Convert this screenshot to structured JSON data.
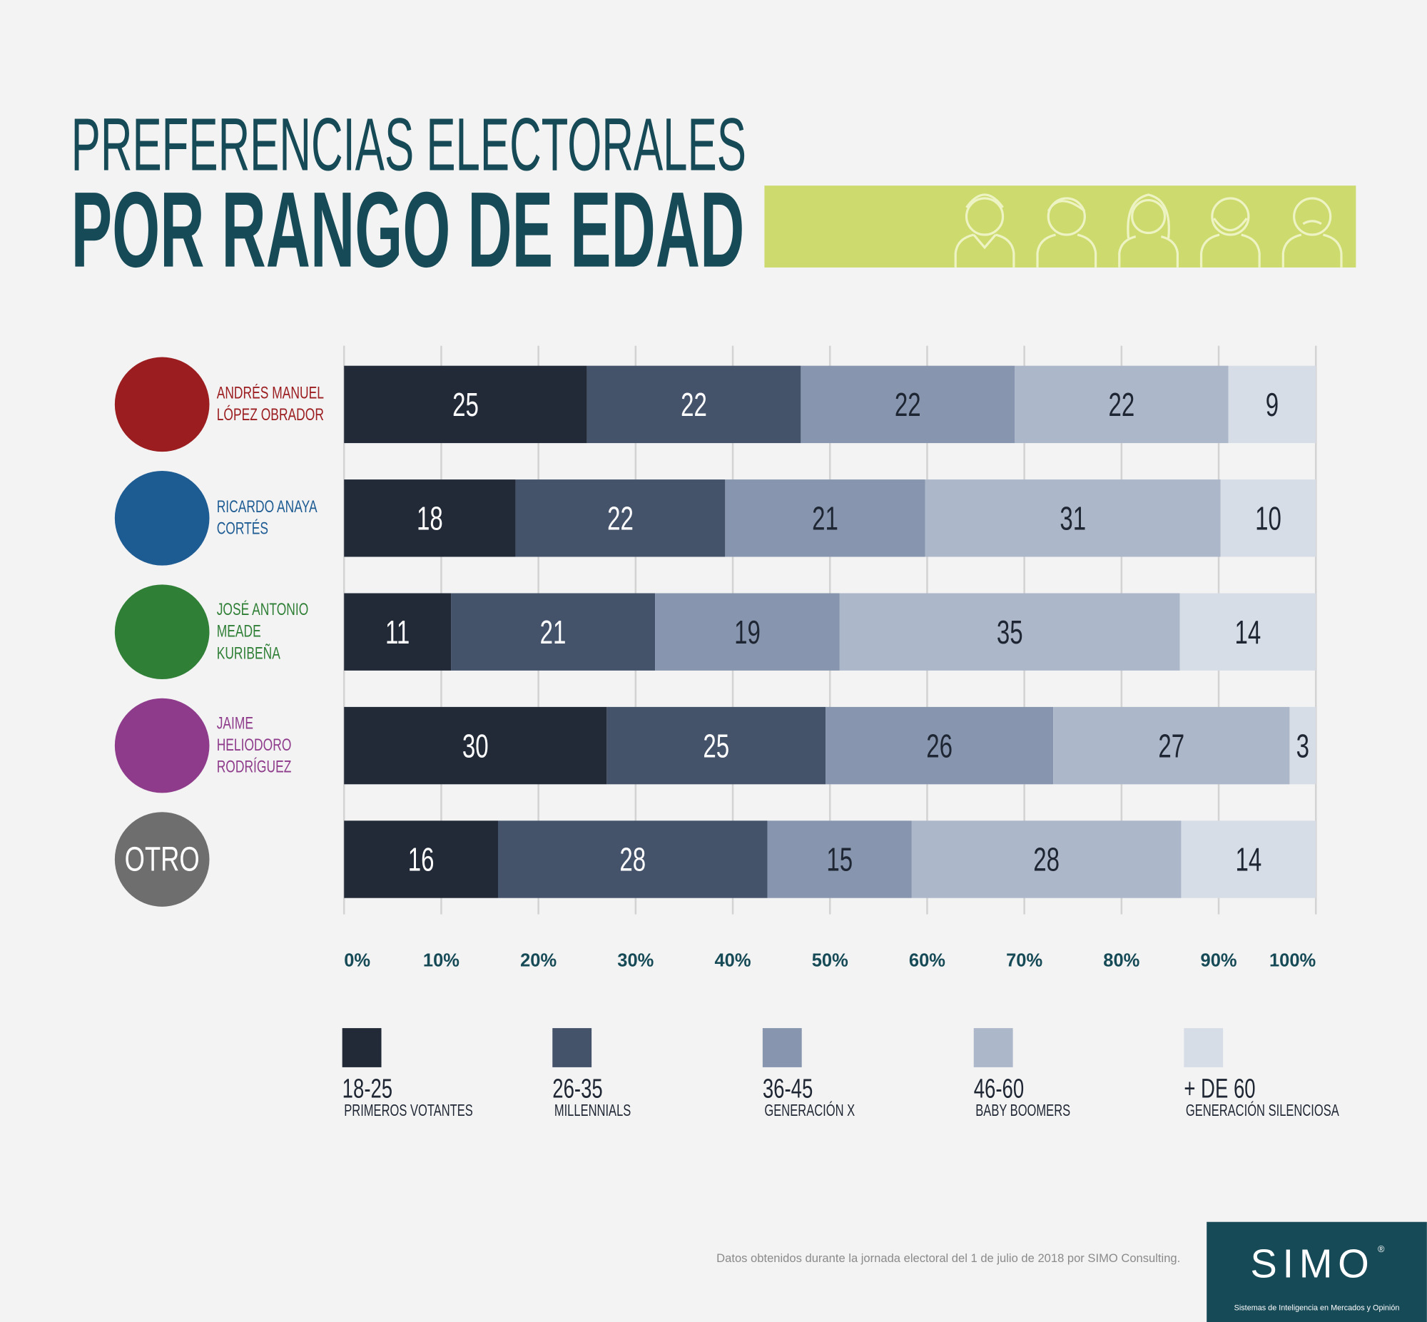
{
  "chart_data": {
    "type": "bar",
    "orientation": "horizontal",
    "stacked": "percent",
    "title": "PREFERENCIAS ELECTORALES",
    "subtitle": "POR RANGO DE EDAD",
    "categories": [
      "ANDRÉS MANUEL LÓPEZ OBRADOR",
      "RICARDO ANAYA CORTÉS",
      "JOSÉ ANTONIO MEADE KURIBEÑA",
      "JAIME HELIODORO RODRÍGUEZ",
      "OTRO"
    ],
    "category_colors": [
      "#9b1d20",
      "#1d5b93",
      "#2f7f36",
      "#8e3b8b",
      "#6e6e6e"
    ],
    "category_badges": [
      false,
      false,
      false,
      false,
      true
    ],
    "series": [
      {
        "name": "18-25",
        "description": "PRIMEROS VOTANTES",
        "color": "#222a38",
        "label_color": "#ffffff",
        "values": [
          25,
          18,
          11,
          30,
          16
        ]
      },
      {
        "name": "26-35",
        "description": "MILLENNIALS",
        "color": "#44526a",
        "label_color": "#ffffff",
        "values": [
          22,
          22,
          21,
          25,
          28
        ]
      },
      {
        "name": "36-45",
        "description": "GENERACIÓN X",
        "color": "#8796ae",
        "label_color": "#1f2633",
        "values": [
          22,
          21,
          19,
          26,
          15
        ]
      },
      {
        "name": "46-60",
        "description": "BABY BOOMERS",
        "color": "#acb7c9",
        "label_color": "#1f2633",
        "values": [
          22,
          31,
          35,
          27,
          28
        ]
      },
      {
        "name": "+ DE 60",
        "description": "GENERACIÓN SILENCIOSA",
        "color": "#d7dde7",
        "label_color": "#1f2633",
        "values": [
          9,
          10,
          14,
          3,
          14
        ]
      }
    ],
    "xlim": [
      0,
      100
    ],
    "xticks": [
      {
        "value": 0,
        "label": "0%"
      },
      {
        "value": 10,
        "label": "10%"
      },
      {
        "value": 20,
        "label": "20%"
      },
      {
        "value": 30,
        "label": "30%"
      },
      {
        "value": 40,
        "label": "40%"
      },
      {
        "value": 50,
        "label": "50%"
      },
      {
        "value": 60,
        "label": "60%"
      },
      {
        "value": 70,
        "label": "70%"
      },
      {
        "value": 80,
        "label": "80%"
      },
      {
        "value": 90,
        "label": "90%"
      },
      {
        "value": 100,
        "label": "100%"
      }
    ],
    "grid": true,
    "source": "Datos obtenidos durante la jornada electoral del 1 de julio de 2018 por SIMO Consulting."
  },
  "logo": {
    "name": "SIMO",
    "mark": "®",
    "tagline": "Sistemas de Inteligencia en Mercados y Opinión"
  }
}
